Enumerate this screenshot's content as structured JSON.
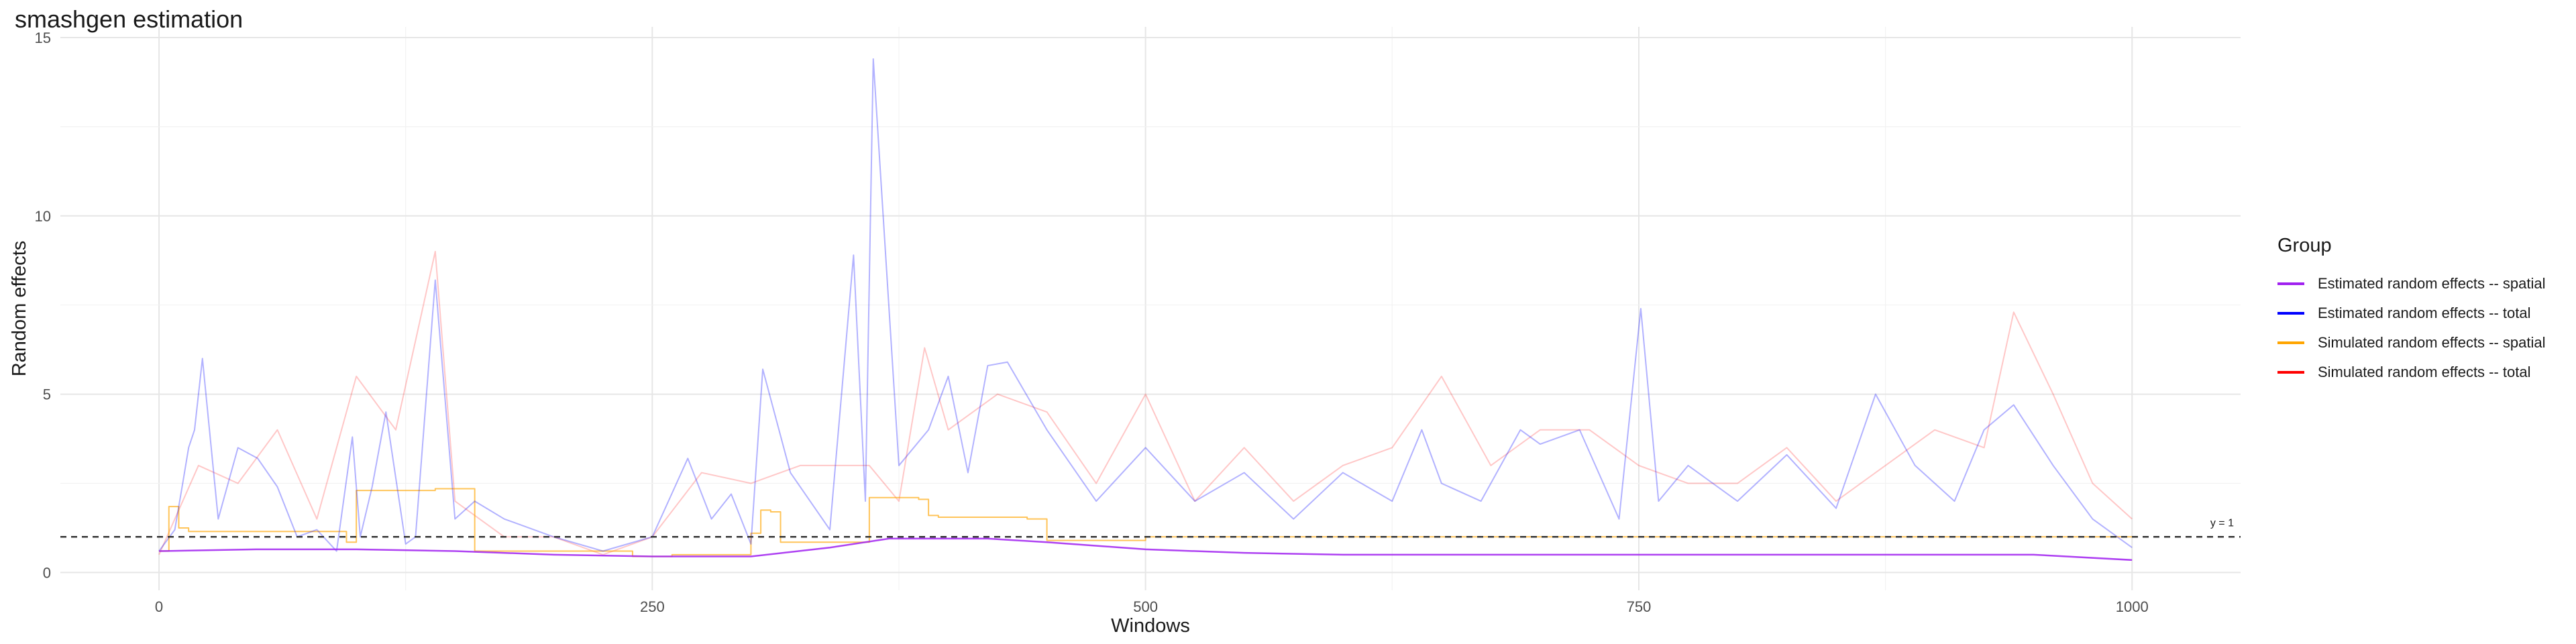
{
  "chart_data": {
    "type": "line",
    "title": "smashgen estimation",
    "xlabel": "Windows",
    "ylabel": "Random effects",
    "xlim": [
      -50,
      1055
    ],
    "ylim": [
      -0.5,
      15.3
    ],
    "x_ticks": [
      0,
      250,
      500,
      750,
      1000
    ],
    "y_ticks": [
      0,
      5,
      10,
      15
    ],
    "grid": true,
    "legend_title": "Group",
    "legend_position": "right",
    "reference_line": {
      "y": 1,
      "label": "y = 1",
      "style": "dashed"
    },
    "series": [
      {
        "name": "Estimated random effects -- spatial",
        "color": "#a020f0",
        "shape": "smooth",
        "x": [
          0,
          50,
          100,
          150,
          200,
          250,
          300,
          340,
          370,
          420,
          450,
          500,
          550,
          600,
          650,
          700,
          750,
          800,
          850,
          900,
          950,
          1000
        ],
        "y": [
          0.6,
          0.65,
          0.65,
          0.6,
          0.5,
          0.45,
          0.45,
          0.7,
          0.95,
          0.95,
          0.85,
          0.65,
          0.55,
          0.5,
          0.5,
          0.5,
          0.5,
          0.5,
          0.5,
          0.5,
          0.5,
          0.35
        ]
      },
      {
        "name": "Estimated random effects -- total",
        "color": "#0000ff",
        "shape": "spiky",
        "x": [
          0,
          8,
          12,
          15,
          18,
          22,
          30,
          40,
          50,
          60,
          70,
          80,
          90,
          98,
          102,
          108,
          115,
          125,
          130,
          135,
          140,
          150,
          160,
          175,
          200,
          225,
          250,
          268,
          280,
          290,
          300,
          306,
          320,
          340,
          352,
          358,
          362,
          375,
          390,
          400,
          410,
          420,
          430,
          450,
          475,
          500,
          525,
          550,
          575,
          600,
          625,
          640,
          650,
          670,
          690,
          700,
          720,
          740,
          751,
          760,
          775,
          800,
          825,
          850,
          870,
          890,
          910,
          925,
          940,
          960,
          980,
          1000
        ],
        "y": [
          0.6,
          1.2,
          2.5,
          3.5,
          4.0,
          6.0,
          1.5,
          3.5,
          3.2,
          2.4,
          1.0,
          1.2,
          0.6,
          3.8,
          1.0,
          2.4,
          4.5,
          0.8,
          1.0,
          4.6,
          8.2,
          1.5,
          2.0,
          1.5,
          1.0,
          0.6,
          1.0,
          3.2,
          1.5,
          2.2,
          0.8,
          5.7,
          2.8,
          1.2,
          8.9,
          2.0,
          14.4,
          3.0,
          4.0,
          5.5,
          2.8,
          5.8,
          5.9,
          4.0,
          2.0,
          3.5,
          2.0,
          2.8,
          1.5,
          2.8,
          2.0,
          4.0,
          2.5,
          2.0,
          4.0,
          3.6,
          4.0,
          1.5,
          7.4,
          2.0,
          3.0,
          2.0,
          3.3,
          1.8,
          5.0,
          3.0,
          2.0,
          4.0,
          4.7,
          3.0,
          1.5,
          0.7
        ]
      },
      {
        "name": "Simulated random effects -- spatial",
        "color": "#ffa500",
        "shape": "step",
        "x": [
          0,
          5,
          10,
          15,
          95,
          100,
          140,
          160,
          240,
          260,
          300,
          305,
          310,
          315,
          355,
          360,
          385,
          390,
          395,
          400,
          410,
          440,
          450,
          500,
          1000
        ],
        "y": [
          0.6,
          1.85,
          1.25,
          1.15,
          0.85,
          2.3,
          2.35,
          0.6,
          0.45,
          0.5,
          1.1,
          1.75,
          1.7,
          0.85,
          0.85,
          2.1,
          2.05,
          1.6,
          1.55,
          1.55,
          1.55,
          1.5,
          0.9,
          1.0,
          1.0
        ]
      },
      {
        "name": "Simulated random effects -- total",
        "color": "#ff0000",
        "shape": "spiky",
        "x": [
          0,
          20,
          40,
          60,
          80,
          100,
          120,
          140,
          150,
          175,
          200,
          225,
          250,
          275,
          300,
          325,
          350,
          360,
          375,
          388,
          400,
          425,
          450,
          475,
          500,
          525,
          550,
          575,
          600,
          625,
          650,
          675,
          700,
          725,
          750,
          775,
          800,
          825,
          850,
          875,
          900,
          925,
          940,
          960,
          980,
          1000
        ],
        "y": [
          0.5,
          3.0,
          2.5,
          4.0,
          1.5,
          5.5,
          4.0,
          9.0,
          2.0,
          1.0,
          1.0,
          0.5,
          1.0,
          2.8,
          2.5,
          3.0,
          3.0,
          3.0,
          2.0,
          6.3,
          4.0,
          5.0,
          4.5,
          2.5,
          5.0,
          2.0,
          3.5,
          2.0,
          3.0,
          3.5,
          5.5,
          3.0,
          4.0,
          4.0,
          3.0,
          2.5,
          2.5,
          3.5,
          2.0,
          3.0,
          4.0,
          3.5,
          7.3,
          5.0,
          2.5,
          1.5
        ]
      }
    ]
  }
}
